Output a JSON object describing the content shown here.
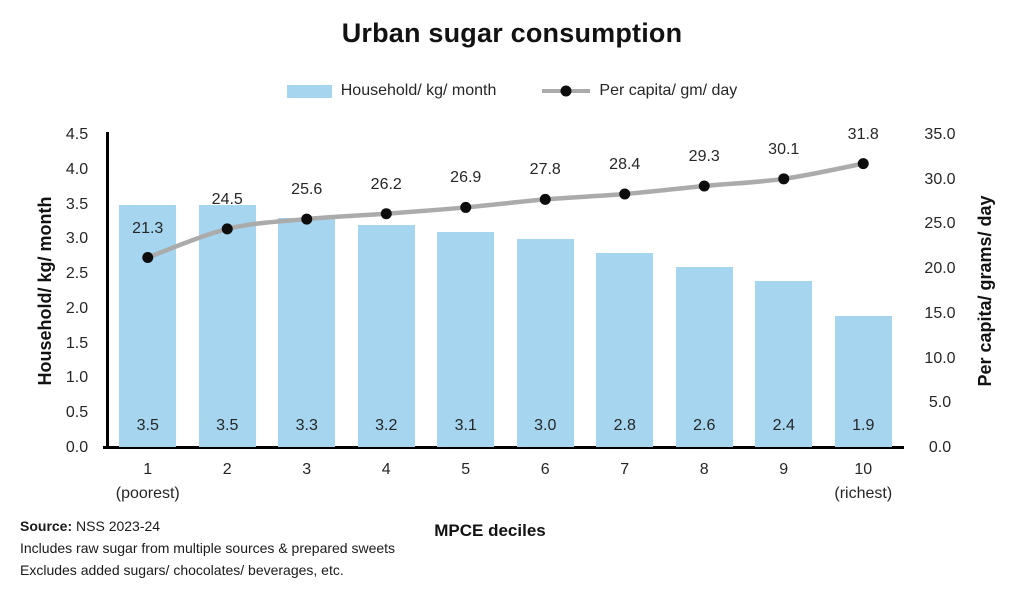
{
  "title": "Urban sugar consumption",
  "legend": [
    {
      "label": "Household/ kg/ month",
      "swatch": "bar-swatch"
    },
    {
      "label": "Per capita/ gm/ day",
      "swatch": "line-swatch"
    }
  ],
  "chart_data": {
    "type": "bar",
    "subtype": "combo bar + line, dual axis",
    "title": "Urban sugar consumption",
    "xlabel": "MPCE deciles",
    "categories": [
      "1",
      "2",
      "3",
      "4",
      "5",
      "6",
      "7",
      "8",
      "9",
      "10"
    ],
    "x_sublabels": [
      "(poorest)",
      "",
      "",
      "",
      "",
      "",
      "",
      "",
      "",
      "(richest)"
    ],
    "series": [
      {
        "name": "Household/ kg/ month",
        "type": "bar",
        "axis": "left",
        "values": [
          3.5,
          3.5,
          3.3,
          3.2,
          3.1,
          3.0,
          2.8,
          2.6,
          2.4,
          1.9
        ]
      },
      {
        "name": "Per capita/ gm/ day",
        "type": "line",
        "axis": "right",
        "values": [
          21.3,
          24.5,
          25.6,
          26.2,
          26.9,
          27.8,
          28.4,
          29.3,
          30.1,
          31.8
        ]
      }
    ],
    "left_axis": {
      "title": "Household/ kg/ month",
      "min": 0,
      "max": 4.5,
      "ticks": [
        "0.0",
        "0.5",
        "1.0",
        "1.5",
        "2.0",
        "2.5",
        "3.0",
        "3.5",
        "4.0",
        "4.5"
      ]
    },
    "right_axis": {
      "title": "Per capita/ grams/ day",
      "min": 0,
      "max": 35,
      "ticks": [
        "0.0",
        "5.0",
        "10.0",
        "15.0",
        "20.0",
        "25.0",
        "30.0",
        "35.0"
      ]
    },
    "grid": false,
    "legend_position": "top",
    "data_labels": true
  },
  "colors": {
    "bar_fill": "#a6d5ef",
    "line": "#ababab",
    "marker": "#0d0d0d",
    "axis": "#000000",
    "text": "#262626"
  },
  "footer": {
    "source_label": "Source:",
    "source_value": " NSS 2023-24",
    "note1": "Includes raw sugar from multiple sources & prepared sweets",
    "note2": "Excludes added sugars/ chocolates/ beverages, etc."
  }
}
